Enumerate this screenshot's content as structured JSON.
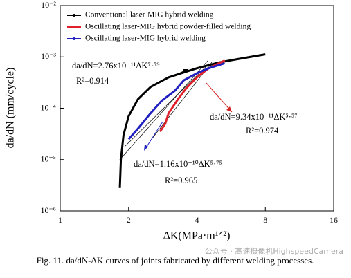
{
  "chart_data": {
    "type": "line",
    "xlabel": "ΔK(MPa·m¹ᐟ²)",
    "ylabel": "da/dN (mm/cycle)",
    "xscale": "log",
    "yscale": "log",
    "xlim": [
      1,
      16
    ],
    "ylim": [
      1e-06,
      0.01
    ],
    "xticks": [
      1,
      2,
      4,
      8,
      16
    ],
    "yticks": [
      {
        "value": 1e-06,
        "label": "10⁻⁶"
      },
      {
        "value": 1e-05,
        "label": "10⁻⁵"
      },
      {
        "value": 0.0001,
        "label": "10⁻⁴"
      },
      {
        "value": 0.001,
        "label": "10⁻³"
      },
      {
        "value": 0.01,
        "label": "10⁻²"
      }
    ],
    "legend": "upper left",
    "series": [
      {
        "name": "Conventional laser-MIG hybrid welding",
        "color": "#000000",
        "x": [
          1.83,
          1.85,
          1.9,
          2.0,
          2.2,
          2.5,
          3,
          4,
          5,
          6,
          8
        ],
        "values": [
          2.8e-06,
          1e-05,
          3e-05,
          7e-05,
          0.00015,
          0.00026,
          0.0004,
          0.0006,
          0.00078,
          0.0009,
          0.00112
        ]
      },
      {
        "name": "Oscillating laser-MIG hybrid powder-filled welding",
        "color": "#e0202a",
        "x": [
          2.75,
          2.9,
          3.0,
          3.3,
          3.6,
          4.0,
          4.5,
          5.3
        ],
        "values": [
          3.5e-05,
          5e-05,
          8e-05,
          0.00015,
          0.00025,
          0.0004,
          0.0006,
          0.00085
        ]
      },
      {
        "name": "Oscillating laser-MIG hybrid welding",
        "color": "#2020c0",
        "x": [
          2.0,
          2.2,
          2.5,
          2.8,
          3.2,
          3.5,
          4.0,
          4.5,
          5.3
        ],
        "values": [
          2.5e-05,
          4e-05,
          8e-05,
          0.00014,
          0.00022,
          0.00035,
          0.00048,
          0.0006,
          0.00075
        ]
      }
    ],
    "annotations": [
      {
        "text": "da/dN=2.76x10⁻¹¹ΔK⁷·⁵⁹",
        "r2": "R²=0.914"
      },
      {
        "text": "da/dN=9.34x10⁻¹¹ΔK⁵·⁵⁷",
        "r2": "R²=0.974"
      },
      {
        "text": "da/dN=1.16x10⁻¹⁰ΔK⁵·⁷⁵",
        "r2": "R²=0.965"
      }
    ]
  },
  "caption": "Fig. 11.  da/dN-ΔK curves of joints fabricated by different welding processes.",
  "watermark": "公众号 · 高速摄像机HighspeedCamera"
}
